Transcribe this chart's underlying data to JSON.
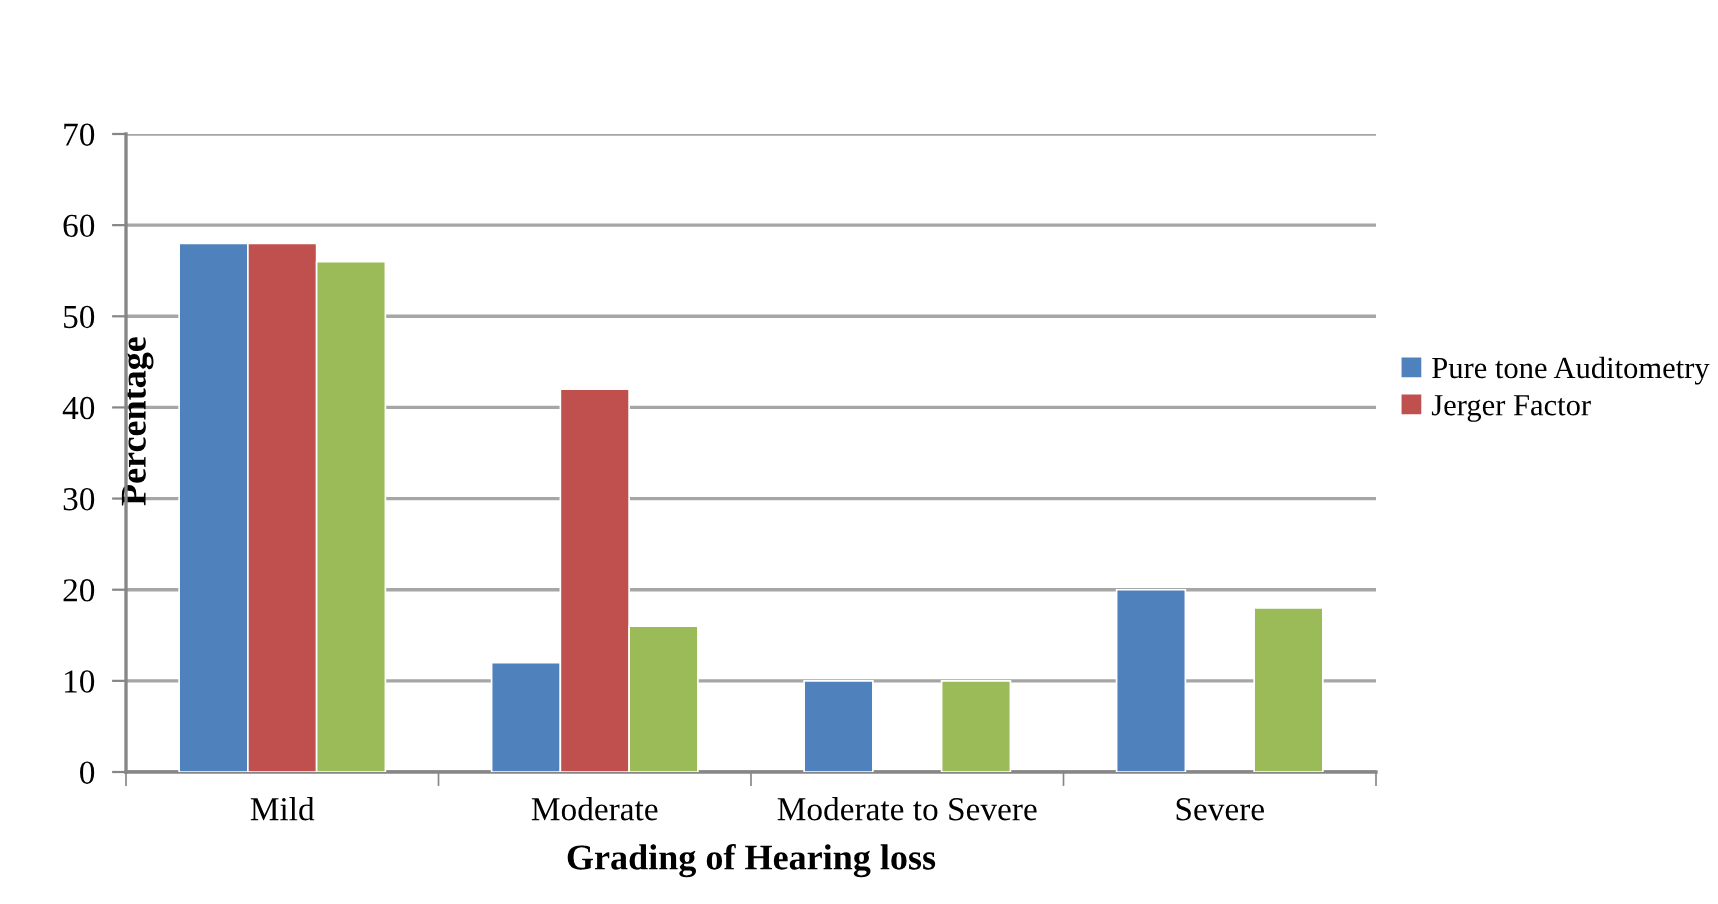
{
  "chart_data": {
    "type": "bar",
    "xlabel": "Grading of Hearing loss",
    "ylabel": "Percentage",
    "categories": [
      "Mild",
      "Moderate",
      "Moderate to Severe",
      "Severe"
    ],
    "series": [
      {
        "name": "Pure tone Auditometry",
        "color": "#4f81bd",
        "values": [
          58,
          12,
          10,
          20
        ]
      },
      {
        "name": "Jerger Factor",
        "color": "#c0504d",
        "values": [
          58,
          42,
          null,
          null
        ]
      },
      {
        "color": "#9bbb59",
        "values": [
          56,
          16,
          10,
          18
        ]
      }
    ],
    "ylim": [
      0,
      70
    ],
    "yticks": [
      0,
      10,
      20,
      30,
      40,
      50,
      60,
      70
    ],
    "grid": "y",
    "legend": "right"
  }
}
